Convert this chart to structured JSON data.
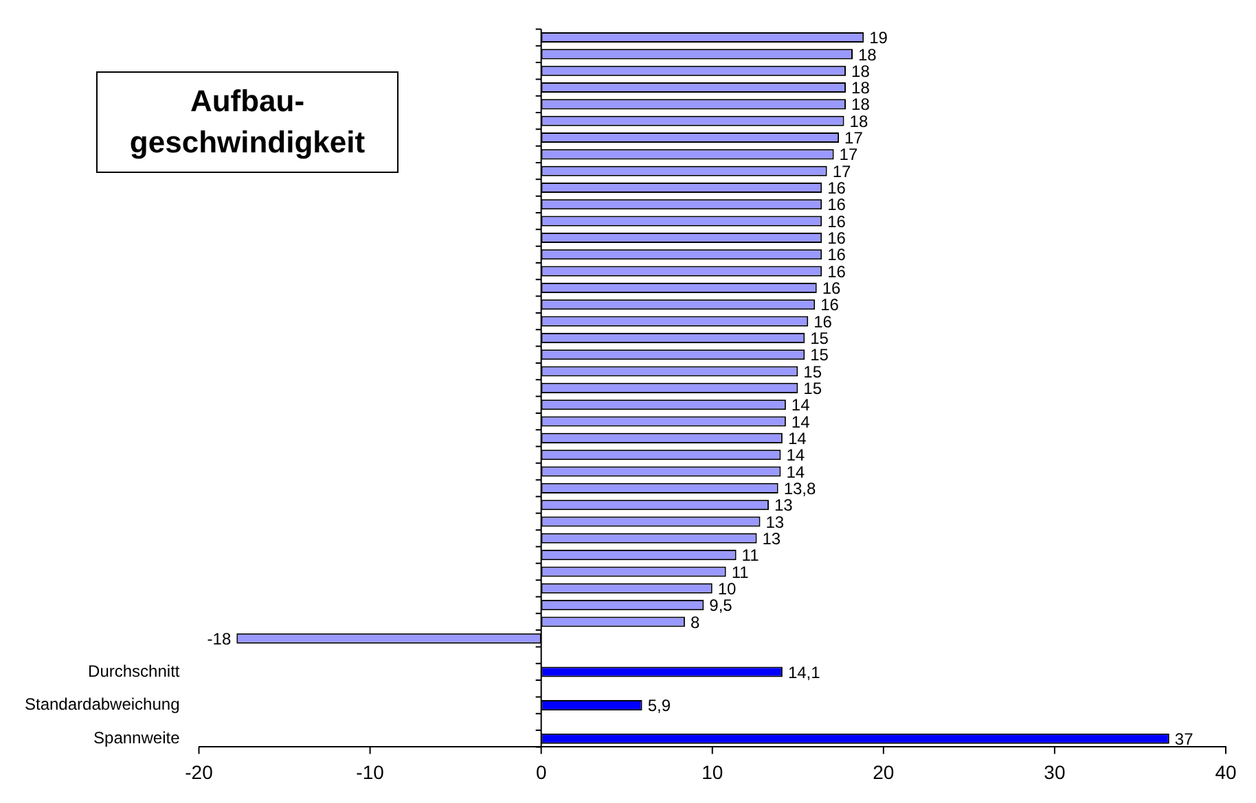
{
  "chart_data": {
    "type": "bar",
    "orientation": "horizontal",
    "title": "Aufbau-geschwindigkeit",
    "categories": [
      null,
      null,
      null,
      null,
      null,
      null,
      null,
      null,
      null,
      null,
      null,
      null,
      null,
      null,
      null,
      null,
      null,
      null,
      null,
      null,
      null,
      null,
      null,
      null,
      null,
      null,
      null,
      null,
      null,
      null,
      null,
      null,
      null,
      null,
      null,
      null,
      null,
      null,
      "Durchschnitt",
      null,
      "Standardabweichung",
      null,
      "Spannweite"
    ],
    "values": [
      18.85,
      18.2,
      17.8,
      17.8,
      17.8,
      17.7,
      17.4,
      17.1,
      16.7,
      16.4,
      16.4,
      16.4,
      16.4,
      16.4,
      16.4,
      16.1,
      16.0,
      15.6,
      15.4,
      15.4,
      15.0,
      15.0,
      14.3,
      14.3,
      14.1,
      14.0,
      14.0,
      13.85,
      13.3,
      12.8,
      12.6,
      11.4,
      10.8,
      10.0,
      9.5,
      8.4,
      -17.8,
      null,
      14.1,
      null,
      5.9,
      null,
      36.7
    ],
    "value_labels": [
      "19",
      "18",
      "18",
      "18",
      "18",
      "18",
      "17",
      "17",
      "17",
      "16",
      "16",
      "16",
      "16",
      "16",
      "16",
      "16",
      "16",
      "16",
      "15",
      "15",
      "15",
      "15",
      "14",
      "14",
      "14",
      "14",
      "14",
      "13,8",
      "13",
      "13",
      "13",
      "11",
      "11",
      "10",
      "9,5",
      "8",
      "-18",
      null,
      "14,1",
      null,
      "5,9",
      null,
      "37"
    ],
    "colors": [
      "#9999ff",
      "#9999ff",
      "#9999ff",
      "#9999ff",
      "#9999ff",
      "#9999ff",
      "#9999ff",
      "#9999ff",
      "#9999ff",
      "#9999ff",
      "#9999ff",
      "#9999ff",
      "#9999ff",
      "#9999ff",
      "#9999ff",
      "#9999ff",
      "#9999ff",
      "#9999ff",
      "#9999ff",
      "#9999ff",
      "#9999ff",
      "#9999ff",
      "#9999ff",
      "#9999ff",
      "#9999ff",
      "#9999ff",
      "#9999ff",
      "#9999ff",
      "#9999ff",
      "#9999ff",
      "#9999ff",
      "#9999ff",
      "#9999ff",
      "#9999ff",
      "#9999ff",
      "#9999ff",
      "#9999ff",
      null,
      "#0000ff",
      null,
      "#0000ff",
      null,
      "#0000ff"
    ],
    "xlim": [
      -20,
      40
    ],
    "xticks": [
      -20,
      -10,
      0,
      10,
      20,
      30,
      40
    ],
    "legend": false
  }
}
